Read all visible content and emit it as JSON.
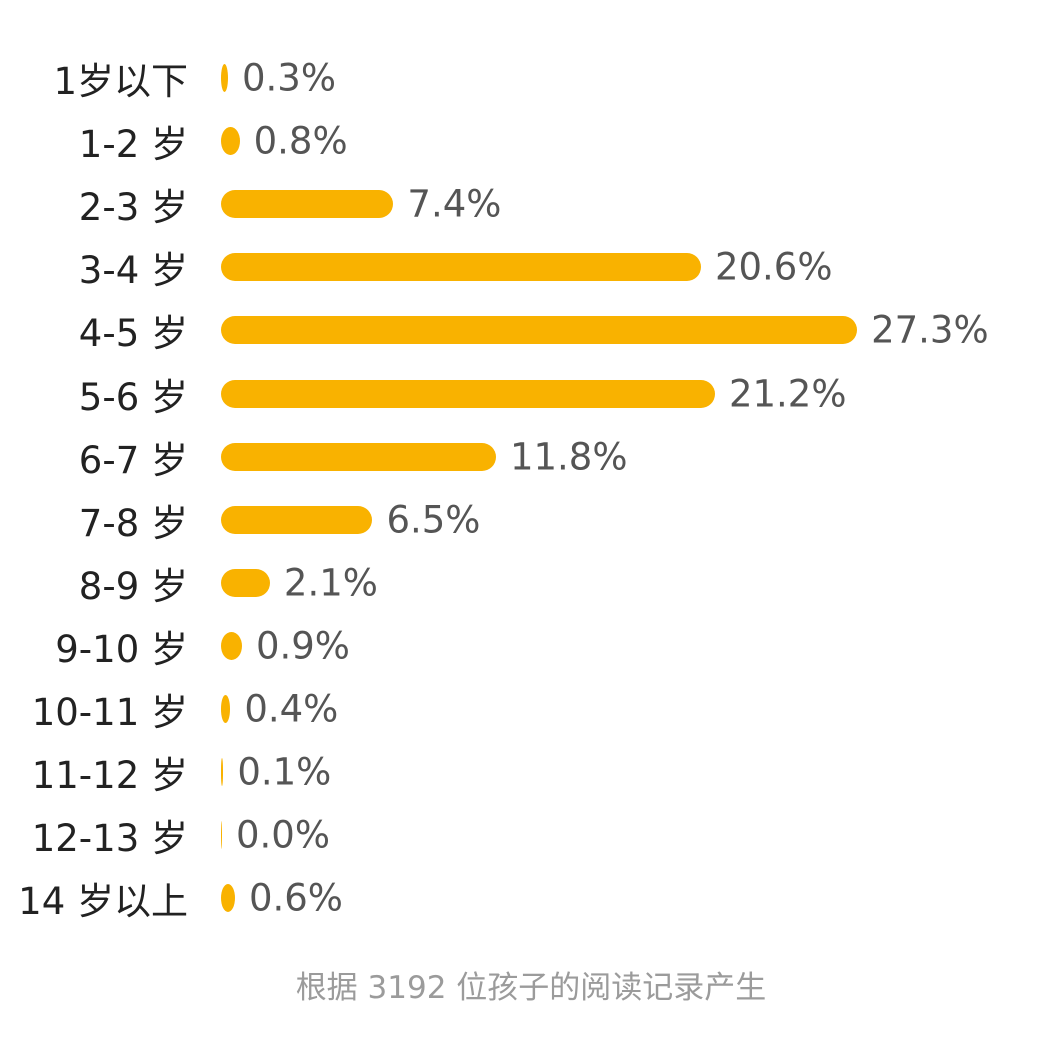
{
  "colors": {
    "bar": "#F9B200"
  },
  "chart_data": {
    "type": "bar",
    "orientation": "horizontal",
    "categories": [
      "1岁以下",
      "1-2 岁",
      "2-3 岁",
      "3-4 岁",
      "4-5 岁",
      "5-6 岁",
      "6-7 岁",
      "7-8 岁",
      "8-9 岁",
      "9-10 岁",
      "10-11 岁",
      "11-12 岁",
      "12-13 岁",
      "14 岁以上"
    ],
    "values": [
      0.3,
      0.8,
      7.4,
      20.6,
      27.3,
      21.2,
      11.8,
      6.5,
      2.1,
      0.9,
      0.4,
      0.1,
      0.0,
      0.6
    ],
    "value_labels": [
      "0.3%",
      "0.8%",
      "7.4%",
      "20.6%",
      "27.3%",
      "21.2%",
      "11.8%",
      "6.5%",
      "2.1%",
      "0.9%",
      "0.4%",
      "0.1%",
      "0.0%",
      "0.6%"
    ],
    "unit": "%",
    "grid": false,
    "legend": "none"
  },
  "footnote": "根据 3192 位孩子的阅读记录产生"
}
